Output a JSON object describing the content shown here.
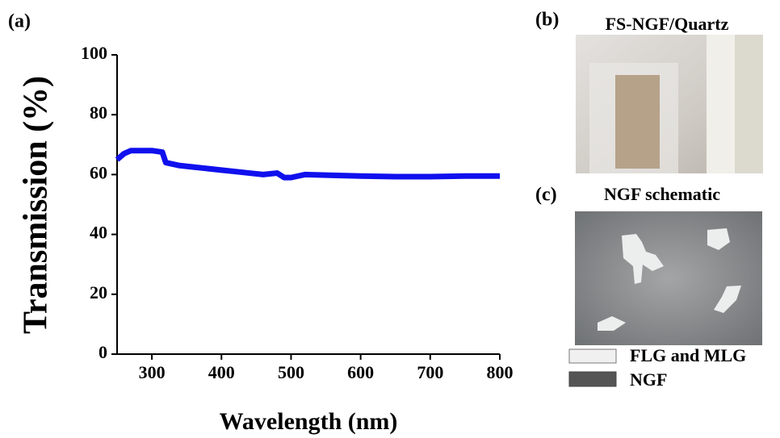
{
  "chart_data": {
    "type": "line",
    "panel_label": "(a)",
    "x_label": "Wavelength (nm)",
    "y_label": "Transmission (%)",
    "x": [
      250,
      260,
      270,
      280,
      300,
      315,
      320,
      340,
      360,
      380,
      400,
      420,
      440,
      460,
      480,
      490,
      500,
      510,
      520,
      550,
      600,
      650,
      700,
      750,
      800
    ],
    "values": [
      65,
      67,
      68,
      68,
      68,
      67.5,
      64,
      63,
      62.5,
      62,
      61.5,
      61,
      60.5,
      60,
      60.5,
      59,
      59,
      59.5,
      60,
      59.8,
      59.5,
      59.3,
      59.3,
      59.5,
      59.5
    ],
    "color": "#1010ee",
    "xlim": [
      250,
      800
    ],
    "xticks": [
      300,
      400,
      500,
      600,
      700,
      800
    ],
    "ylim": [
      0,
      100
    ],
    "yticks": [
      0,
      20,
      40,
      60,
      80,
      100
    ]
  },
  "panels": {
    "b": {
      "label": "(b)",
      "title": "FS-NGF/Quartz"
    },
    "c": {
      "label": "(c)",
      "title": "NGF schematic",
      "legend": [
        "FLG and MLG",
        "NGF"
      ]
    }
  }
}
